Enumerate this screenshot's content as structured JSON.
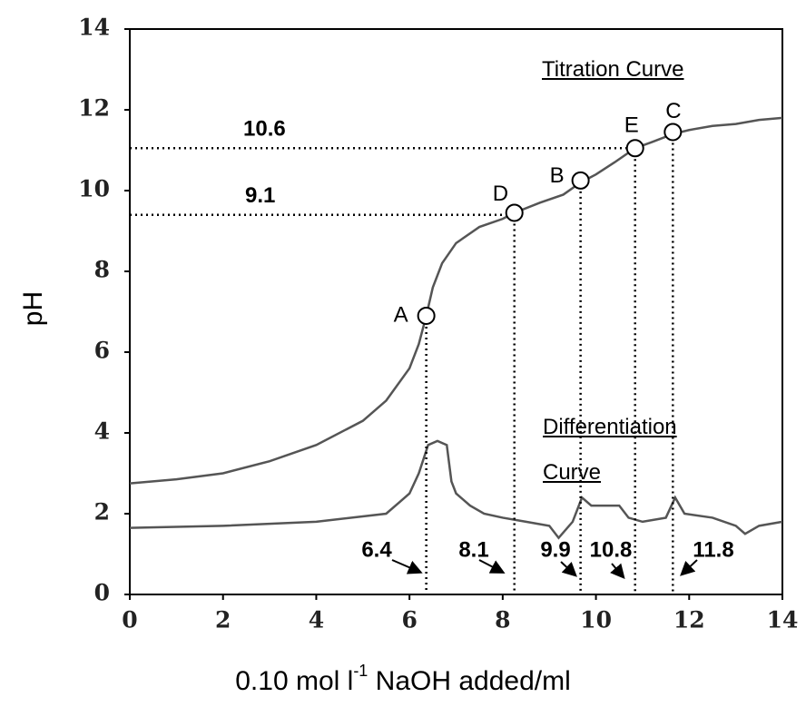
{
  "chart_data": {
    "type": "line",
    "x_label_parts": [
      "0.10 mol l",
      "-1",
      " NaOH added/ml"
    ],
    "y_label": "pH",
    "xlim": [
      0,
      14
    ],
    "xticks": [
      0,
      2,
      4,
      6,
      8,
      10,
      12,
      14
    ],
    "ylim": [
      0,
      14
    ],
    "yticks": [
      0,
      2,
      4,
      6,
      8,
      10,
      12,
      14
    ],
    "series": [
      {
        "name": "Titration Curve",
        "color": "#555555",
        "x": [
          0,
          1,
          2,
          3,
          4,
          5,
          5.5,
          6,
          6.2,
          6.36,
          6.5,
          6.7,
          7,
          7.5,
          8,
          8.25,
          8.8,
          9.3,
          9.67,
          10,
          10.4,
          10.84,
          11.2,
          11.65,
          12,
          12.5,
          13,
          13.5,
          14
        ],
        "values": [
          2.75,
          2.85,
          3.0,
          3.3,
          3.7,
          4.3,
          4.8,
          5.6,
          6.2,
          6.9,
          7.6,
          8.2,
          8.7,
          9.1,
          9.3,
          9.45,
          9.7,
          9.9,
          10.2,
          10.4,
          10.7,
          11.05,
          11.2,
          11.4,
          11.5,
          11.6,
          11.65,
          11.75,
          11.8
        ]
      },
      {
        "name": "Differentiation Curve",
        "color": "#555555",
        "x": [
          0,
          2,
          4,
          5.5,
          5.8,
          6,
          6.2,
          6.4,
          6.6,
          6.8,
          6.9,
          7,
          7.3,
          7.6,
          8,
          8.5,
          9,
          9.2,
          9.5,
          9.7,
          9.9,
          10.2,
          10.5,
          10.7,
          11,
          11.5,
          11.7,
          11.9,
          12.5,
          13,
          13.2,
          13.5,
          14
        ],
        "values": [
          1.65,
          1.7,
          1.8,
          2.0,
          2.3,
          2.5,
          3.0,
          3.7,
          3.8,
          3.7,
          2.8,
          2.5,
          2.2,
          2.0,
          1.9,
          1.8,
          1.7,
          1.4,
          1.8,
          2.4,
          2.2,
          2.2,
          2.2,
          1.9,
          1.8,
          1.9,
          2.4,
          2.0,
          1.9,
          1.7,
          1.5,
          1.7,
          1.8
        ]
      }
    ],
    "points": [
      {
        "label": "A",
        "x": 6.36,
        "y": 6.9
      },
      {
        "label": "B",
        "x": 9.67,
        "y": 10.25
      },
      {
        "label": "C",
        "x": 11.65,
        "y": 11.45
      },
      {
        "label": "D",
        "x": 8.25,
        "y": 9.45
      },
      {
        "label": "E",
        "x": 10.84,
        "y": 11.05
      }
    ],
    "guides": [
      {
        "label": "10.6",
        "y": 11.05
      },
      {
        "label": "9.1",
        "y": 9.4
      }
    ],
    "annotations": [
      "6.4",
      "8.1",
      "9.9",
      "10.8",
      "11.8"
    ]
  }
}
